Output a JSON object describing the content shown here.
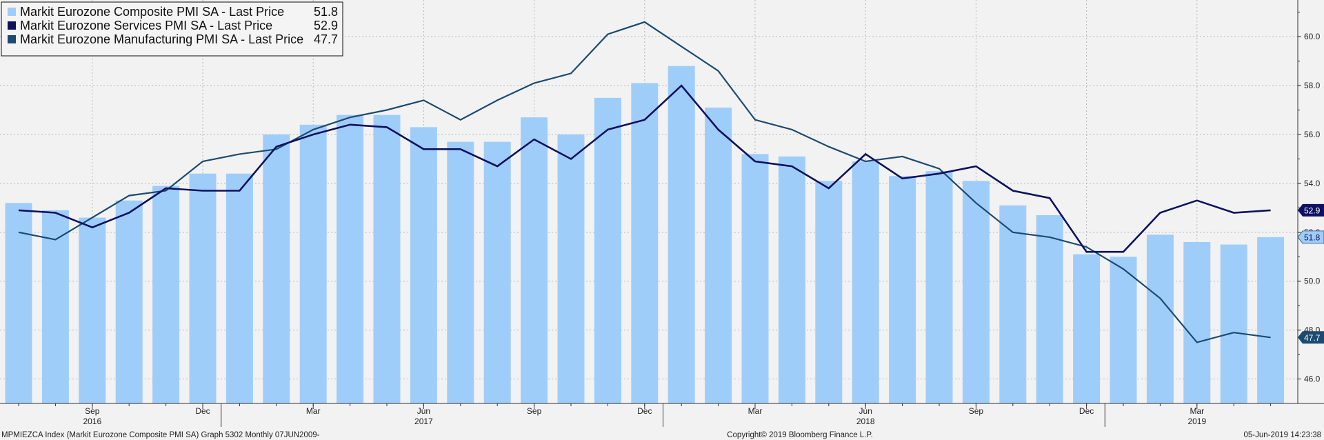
{
  "colors": {
    "background": "#f2f2f2",
    "grid": "#b5b5b5",
    "composite": "#9fcdfa",
    "services": "#0d1160",
    "manufacturing": "#1c4a70"
  },
  "chart_data": {
    "type": "bar+line",
    "grid": true,
    "legend_placement": "top-left",
    "ylim": [
      45.0,
      61.5
    ],
    "y_ticks": [
      "46.0",
      "48.0",
      "50.0",
      "52.0",
      "54.0",
      "56.0",
      "58.0",
      "60.0"
    ],
    "months": [
      "Jul 2016",
      "Aug 2016",
      "Sep 2016",
      "Oct 2016",
      "Nov 2016",
      "Dec 2016",
      "Jan 2017",
      "Feb 2017",
      "Mar 2017",
      "Apr 2017",
      "May 2017",
      "Jun 2017",
      "Jul 2017",
      "Aug 2017",
      "Sep 2017",
      "Oct 2017",
      "Nov 2017",
      "Dec 2017",
      "Jan 2018",
      "Feb 2018",
      "Mar 2018",
      "Apr 2018",
      "May 2018",
      "Jun 2018",
      "Jul 2018",
      "Aug 2018",
      "Sep 2018",
      "Oct 2018",
      "Nov 2018",
      "Dec 2018",
      "Jan 2019",
      "Feb 2019",
      "Mar 2019",
      "Apr 2019",
      "May 2019"
    ],
    "x_ticks": [
      {
        "index": 2,
        "label": "Sep",
        "year": "2016"
      },
      {
        "index": 5,
        "label": "Dec",
        "year": ""
      },
      {
        "index": 8,
        "label": "Mar",
        "year": ""
      },
      {
        "index": 11,
        "label": "Jun",
        "year": "2017"
      },
      {
        "index": 14,
        "label": "Sep",
        "year": ""
      },
      {
        "index": 17,
        "label": "Dec",
        "year": ""
      },
      {
        "index": 20,
        "label": "Mar",
        "year": ""
      },
      {
        "index": 23,
        "label": "Jun",
        "year": "2018"
      },
      {
        "index": 26,
        "label": "Sep",
        "year": ""
      },
      {
        "index": 29,
        "label": "Dec",
        "year": ""
      },
      {
        "index": 32,
        "label": "Mar",
        "year": "2019"
      }
    ],
    "series": [
      {
        "key": "composite",
        "kind": "bar",
        "name": "Markit Eurozone Composite PMI SA - Last Price",
        "last": "51.8",
        "values": [
          53.2,
          52.9,
          52.6,
          53.3,
          53.9,
          54.4,
          54.4,
          56.0,
          56.4,
          56.8,
          56.8,
          56.3,
          55.7,
          55.7,
          56.7,
          56.0,
          57.5,
          58.1,
          58.8,
          57.1,
          55.2,
          55.1,
          54.1,
          54.9,
          54.3,
          54.5,
          54.1,
          53.1,
          52.7,
          51.1,
          51.0,
          51.9,
          51.6,
          51.5,
          51.8
        ]
      },
      {
        "key": "services",
        "kind": "line",
        "name": "Markit Eurozone Services PMI SA - Last Price",
        "last": "52.9",
        "values": [
          52.9,
          52.8,
          52.2,
          52.8,
          53.8,
          53.7,
          53.7,
          55.5,
          56.0,
          56.4,
          56.3,
          55.4,
          55.4,
          54.7,
          55.8,
          55.0,
          56.2,
          56.6,
          58.0,
          56.2,
          54.9,
          54.7,
          53.8,
          55.2,
          54.2,
          54.4,
          54.7,
          53.7,
          53.4,
          51.2,
          51.2,
          52.8,
          53.3,
          52.8,
          52.9
        ]
      },
      {
        "key": "manufacturing",
        "kind": "line",
        "name": "Markit Eurozone Manufacturing PMI SA - Last Price",
        "last": "47.7",
        "values": [
          52.0,
          51.7,
          52.6,
          53.5,
          53.7,
          54.9,
          55.2,
          55.4,
          56.2,
          56.7,
          57.0,
          57.4,
          56.6,
          57.4,
          58.1,
          58.5,
          60.1,
          60.6,
          59.6,
          58.6,
          56.6,
          56.2,
          55.5,
          54.9,
          55.1,
          54.6,
          53.2,
          52.0,
          51.8,
          51.4,
          50.5,
          49.3,
          47.5,
          47.9,
          47.7
        ]
      }
    ]
  },
  "footer": {
    "left": "MPMIEZCA Index (Markit Eurozone Composite PMI SA) Graph 5302  Monthly 07JUN2009-",
    "center": "Copyright© 2019 Bloomberg Finance L.P.",
    "right": "05-Jun-2019 14:23:38"
  }
}
